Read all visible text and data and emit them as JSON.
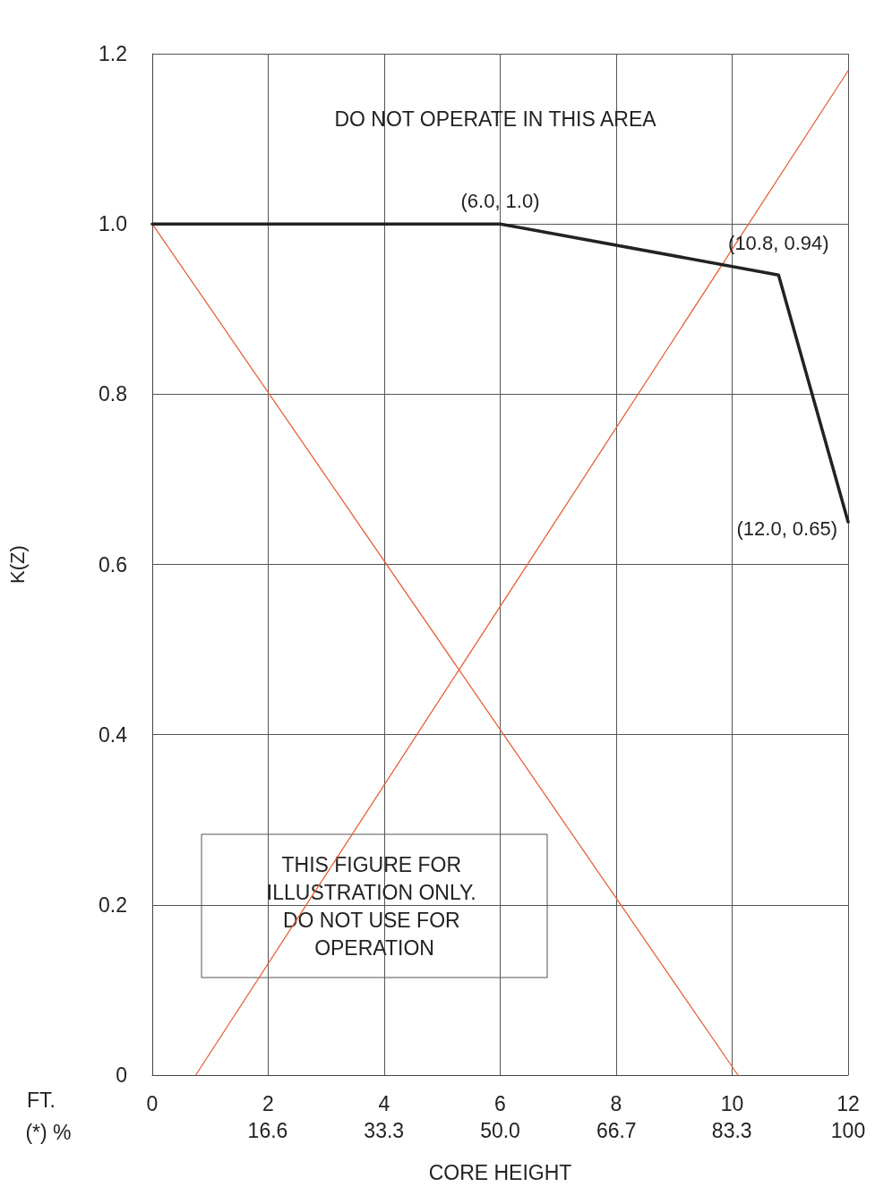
{
  "chart_data": {
    "type": "line",
    "xlabel": "CORE HEIGHT",
    "ylabel": "K(Z)",
    "series": [
      {
        "color": "#222222",
        "x": [
          0,
          6,
          10.8,
          12
        ],
        "values": [
          1.0,
          1.0,
          0.94,
          0.65
        ]
      },
      {
        "color": "#e8603c",
        "x": [
          0,
          10.1
        ],
        "values": [
          1.0,
          0
        ]
      },
      {
        "color": "#e8603c",
        "x": [
          0.75,
          12
        ],
        "values": [
          0,
          1.18
        ]
      }
    ],
    "xlim": [
      0,
      12
    ],
    "xticks": [
      0,
      2,
      4,
      6,
      8,
      10,
      12
    ],
    "x2lim": [
      0,
      100
    ],
    "x2ticks": [
      16.6,
      33.3,
      {
        "value": 50,
        "label": "50.0"
      },
      66.7,
      83.3,
      100
    ],
    "ylim": [
      0,
      1.2
    ],
    "yticks": [
      0,
      0.2,
      0.4,
      0.6,
      0.8,
      {
        "value": 1,
        "label": "1.0"
      },
      1.2
    ],
    "grid": true,
    "marker": "none",
    "line_style": "solid",
    "annotations": [
      "DO NOT OPERATE IN THIS AREA",
      {
        "text": "(6.0, 1.0)",
        "x": 6,
        "y": 1.0
      },
      {
        "text": "(10.8, 0.94)",
        "x": 10.8,
        "y": 0.94
      },
      {
        "text": "(12.0, 0.65)",
        "x": 12,
        "y": 0.65
      },
      "THIS FIGURE FOR ILLUSTRATION ONLY. DO NOT USE FOR OPERATION",
      "FT.",
      "(*) %"
    ]
  }
}
